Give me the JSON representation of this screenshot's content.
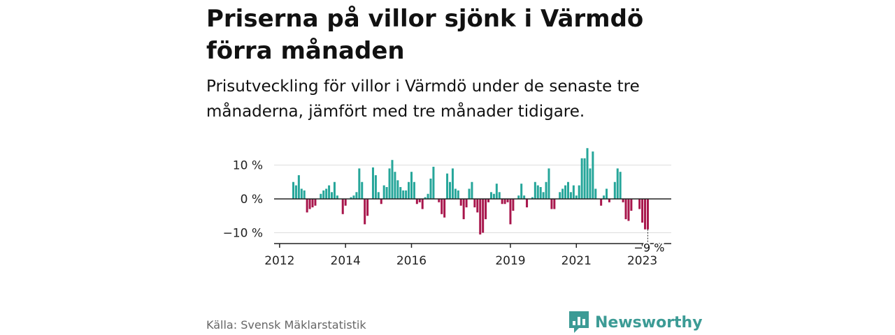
{
  "header": {
    "title": "Priserna på villor sjönk i Värmdö förra månaden",
    "subtitle": "Prisutveckling för villor i Värmdö under de senaste tre månaderna, jämfört med tre månader tidigare."
  },
  "footer": {
    "source": "Källa: Svensk Mäklarstatistik",
    "brand": "Newsworthy"
  },
  "colors": {
    "positive": "#26a69a",
    "negative": "#a8164c",
    "grid": "#dddddd",
    "axis": "#222222",
    "brand": "#3c9b95"
  },
  "chart_data": {
    "type": "bar",
    "y_unit": "%",
    "ylim": [
      -12,
      16
    ],
    "y_ticks": [
      {
        "value": 10,
        "label": "10 %"
      },
      {
        "value": 0,
        "label": "0 %"
      },
      {
        "value": -10,
        "label": "−10 %"
      }
    ],
    "x_ticks": [
      "2012",
      "2014",
      "2016",
      "2019",
      "2021",
      "2023"
    ],
    "grid": true,
    "annotation": {
      "text": "−9 %",
      "value": -9
    },
    "period": {
      "start": "2012-06",
      "end": "2023-03"
    },
    "values": [
      5,
      4,
      7,
      3,
      2.5,
      -4,
      -3,
      -2.5,
      -2,
      0,
      1.5,
      2.5,
      3,
      4,
      2,
      5,
      1,
      0,
      -4.5,
      -2,
      0,
      0.5,
      1,
      2,
      9,
      5,
      -7.5,
      -5,
      0,
      9.3,
      7,
      2,
      -1.5,
      4,
      3.5,
      9,
      11.5,
      8,
      5.5,
      3.5,
      2.5,
      2.5,
      5,
      8,
      5,
      -1.5,
      -1,
      -3,
      0.5,
      1.5,
      6,
      9.5,
      0,
      -1,
      -4.5,
      -5.5,
      7.5,
      5,
      9,
      3,
      2.5,
      -2,
      -6,
      -2.5,
      3,
      5,
      -2.5,
      -4,
      -10.5,
      -10,
      -6,
      -1,
      2,
      1.5,
      4.5,
      2,
      -1.5,
      -1.5,
      -1,
      -7.5,
      -3.5,
      0,
      1,
      4.5,
      1,
      -2.5,
      0,
      0.5,
      5,
      4,
      3.5,
      2,
      5,
      9,
      -3,
      -3,
      0,
      2,
      3,
      4,
      5,
      2,
      4,
      1,
      4,
      12,
      12,
      15,
      9,
      14,
      3,
      0,
      -2,
      1,
      3,
      -1,
      0,
      5,
      9,
      8,
      -1,
      -6,
      -6.5,
      -3.5,
      0,
      0,
      -3,
      -7,
      -9,
      -9
    ]
  }
}
